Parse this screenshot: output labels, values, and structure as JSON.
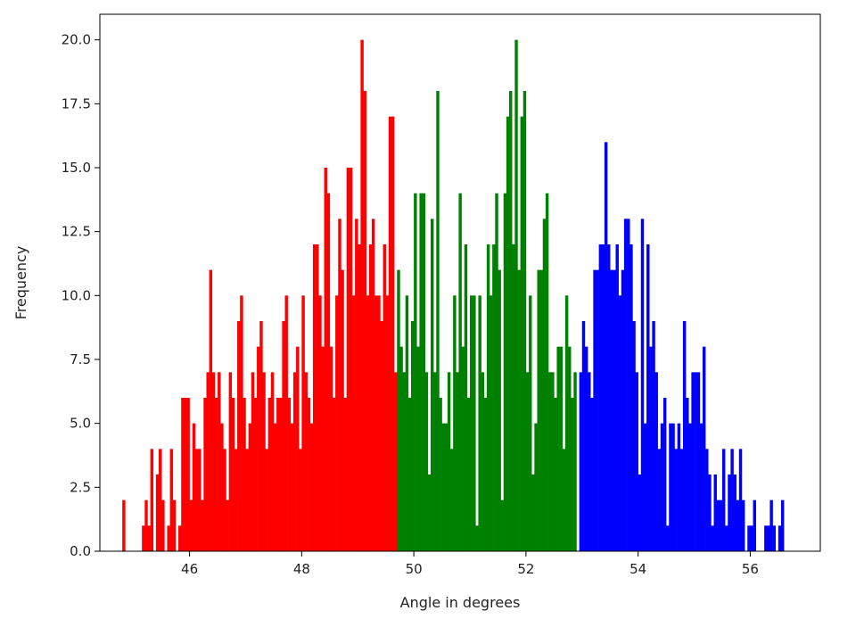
{
  "chart_data": {
    "type": "bar",
    "subtype": "histogram",
    "title": "",
    "xlabel": "Angle in degrees",
    "ylabel": "Frequency",
    "xlim": [
      44.4,
      57.25
    ],
    "ylim": [
      0,
      21
    ],
    "grid": false,
    "legend": "none",
    "bin_width": 0.05,
    "x_ticks": [
      {
        "value": 46,
        "label": "46"
      },
      {
        "value": 48,
        "label": "48"
      },
      {
        "value": 50,
        "label": "50"
      },
      {
        "value": 52,
        "label": "52"
      },
      {
        "value": 54,
        "label": "54"
      },
      {
        "value": 56,
        "label": "56"
      }
    ],
    "y_ticks": [
      {
        "value": 0,
        "label": "0.0"
      },
      {
        "value": 2.5,
        "label": "2.5"
      },
      {
        "value": 5,
        "label": "5.0"
      },
      {
        "value": 7.5,
        "label": "7.5"
      },
      {
        "value": 10,
        "label": "10.0"
      },
      {
        "value": 12.5,
        "label": "12.5"
      },
      {
        "value": 15,
        "label": "15.0"
      },
      {
        "value": 17.5,
        "label": "17.5"
      },
      {
        "value": 20,
        "label": "20.0"
      }
    ],
    "series": [
      {
        "color": "#ff0000",
        "x_start": 44.8,
        "values": [
          2,
          0,
          0,
          0,
          0,
          0,
          0,
          1,
          2,
          1,
          4,
          0,
          3,
          4,
          2,
          0,
          1,
          4,
          2,
          0,
          1,
          6,
          6,
          6,
          2,
          5,
          4,
          4,
          2,
          6,
          7,
          11,
          7,
          6,
          7,
          5,
          4,
          2,
          7,
          6,
          4,
          9,
          10,
          6,
          4,
          5,
          7,
          6,
          8,
          9,
          7,
          4,
          6,
          7,
          5,
          6,
          6,
          9,
          10,
          6,
          5,
          7,
          8,
          4,
          10,
          7,
          6,
          5,
          12,
          12,
          10,
          8,
          15,
          14,
          8,
          6,
          10,
          13,
          11,
          6,
          15,
          15,
          10,
          13,
          12,
          20,
          18,
          10,
          12,
          13,
          10,
          10,
          9,
          12,
          10,
          17,
          17,
          7
        ]
      },
      {
        "color": "#008000",
        "x_start": 49.7,
        "values": [
          11,
          8,
          7,
          10,
          6,
          9,
          14,
          8,
          14,
          14,
          7,
          3,
          13,
          7,
          18,
          6,
          5,
          5,
          7,
          4,
          10,
          7,
          14,
          8,
          12,
          6,
          10,
          10,
          1,
          10,
          7,
          6,
          12,
          10,
          12,
          14,
          11,
          2,
          14,
          17,
          18,
          12,
          20,
          11,
          17,
          18,
          7,
          10,
          3,
          5,
          11,
          11,
          13,
          14,
          7,
          7,
          6,
          8,
          8,
          4,
          10,
          8,
          6,
          7
        ]
      },
      {
        "color": "#0000ff",
        "x_start": 52.95,
        "values": [
          7,
          9,
          8,
          7,
          6,
          11,
          11,
          12,
          12,
          16,
          12,
          11,
          11,
          12,
          10,
          11,
          13,
          13,
          12,
          9,
          7,
          3,
          13,
          5,
          12,
          8,
          9,
          7,
          4,
          5,
          6,
          1,
          5,
          5,
          4,
          5,
          4,
          9,
          6,
          5,
          7,
          7,
          7,
          5,
          8,
          4,
          3,
          1,
          3,
          2,
          2,
          4,
          1,
          3,
          4,
          3,
          2,
          4,
          2,
          0,
          1,
          1,
          2,
          0,
          0,
          0,
          1,
          1,
          2,
          1,
          0,
          1,
          2
        ]
      }
    ]
  }
}
